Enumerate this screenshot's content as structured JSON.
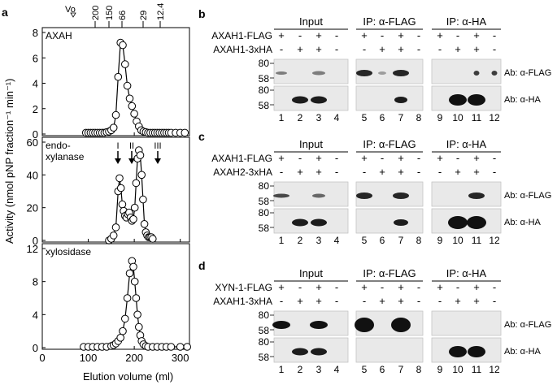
{
  "panel_a": {
    "letter": "a",
    "ylabel": "Activity (nmol pNP fraction⁻¹ min⁻¹)",
    "xlabel": "Elution volume (ml)",
    "marker_vo": "Vo",
    "markers": [
      "200",
      "150",
      "66",
      "29",
      "12.4"
    ],
    "peak_labels": [
      "I",
      "II",
      "III"
    ],
    "xticks": [
      "0",
      "100",
      "200",
      "300"
    ]
  },
  "chart_data": [
    {
      "type": "line",
      "title": "AXAH",
      "xlim": [
        0,
        320
      ],
      "ylim": [
        0,
        8
      ],
      "yticks": [
        0,
        2,
        4,
        6,
        8
      ],
      "x": [
        95,
        100,
        105,
        110,
        115,
        120,
        125,
        130,
        135,
        140,
        145,
        150,
        155,
        160,
        165,
        170,
        175,
        180,
        185,
        190,
        195,
        200,
        205,
        210,
        215,
        220,
        225,
        230,
        235,
        240,
        245,
        250,
        255,
        260,
        265,
        270,
        275,
        280,
        290,
        300,
        310
      ],
      "values": [
        0.1,
        0.1,
        0.1,
        0.1,
        0.1,
        0.1,
        0.1,
        0.1,
        0.1,
        0.15,
        0.2,
        0.3,
        0.5,
        1.5,
        4.5,
        7.2,
        7.0,
        5.5,
        3.8,
        2.8,
        2.2,
        1.6,
        1.0,
        0.6,
        0.3,
        0.2,
        0.15,
        0.1,
        0.1,
        0.1,
        0.1,
        0.1,
        0.1,
        0.1,
        0.1,
        0.1,
        0.1,
        0.1,
        0.1,
        0.1,
        0.1
      ]
    },
    {
      "type": "line",
      "title": "endo-\nxylanase",
      "xlim": [
        0,
        320
      ],
      "ylim": [
        0,
        60
      ],
      "yticks": [
        0,
        20,
        40,
        60
      ],
      "x": [
        145,
        150,
        155,
        160,
        165,
        168,
        171,
        174,
        177,
        180,
        183,
        186,
        189,
        192,
        195,
        198,
        201,
        204,
        207,
        210,
        213,
        216,
        219,
        222,
        225,
        228,
        231,
        234,
        237,
        240
      ],
      "values": [
        0,
        1,
        3,
        8,
        30,
        38,
        32,
        22,
        18,
        15,
        14,
        16,
        17,
        14,
        12,
        13,
        20,
        35,
        50,
        55,
        52,
        40,
        25,
        10,
        5,
        3,
        2,
        2,
        2,
        1
      ]
    },
    {
      "type": "line",
      "title": "xylosidase",
      "xlim": [
        0,
        320
      ],
      "ylim": [
        0,
        12
      ],
      "yticks": [
        0,
        4,
        8,
        12
      ],
      "x": [
        90,
        100,
        110,
        120,
        130,
        140,
        150,
        155,
        160,
        165,
        170,
        175,
        180,
        185,
        190,
        195,
        198,
        201,
        204,
        207,
        210,
        213,
        216,
        220,
        225,
        230,
        240,
        250,
        260,
        270,
        280,
        300,
        315
      ],
      "values": [
        0.1,
        0.1,
        0.1,
        0.1,
        0.1,
        0.1,
        0.2,
        0.3,
        0.5,
        0.8,
        1.2,
        2.0,
        3.5,
        6.0,
        9.0,
        10.5,
        9.8,
        8.0,
        6.0,
        4.0,
        2.5,
        1.5,
        0.8,
        0.4,
        0.2,
        0.1,
        0.1,
        0.1,
        0.1,
        0.1,
        0.1,
        0.1,
        0.1
      ]
    }
  ],
  "blots": [
    {
      "letter": "b",
      "groups": [
        "Input",
        "IP: α-FLAG",
        "IP: α-HA"
      ],
      "row1_label": "AXAH1-FLAG",
      "row2_label": "AXAH1-3xHA",
      "row1_signs": [
        "+",
        "-",
        "+",
        "-",
        "+",
        "-",
        "+",
        "-",
        "+",
        "-",
        "+",
        "-"
      ],
      "row2_signs": [
        "-",
        "+",
        "+",
        "-",
        "-",
        "+",
        "+",
        "-",
        "-",
        "+",
        "+",
        "-"
      ],
      "mw_top": [
        "80",
        "58"
      ],
      "mw_bottom": [
        "80",
        "58"
      ],
      "ab_top": "Ab: α-FLAG",
      "ab_bottom": "Ab: α-HA",
      "lanes": [
        "1",
        "2",
        "3",
        "4",
        "5",
        "6",
        "7",
        "8",
        "9",
        "10",
        "11",
        "12"
      ]
    },
    {
      "letter": "c",
      "groups": [
        "Input",
        "IP: α-FLAG",
        "IP: α-HA"
      ],
      "row1_label": "AXAH1-FLAG",
      "row2_label": "AXAH2-3xHA",
      "row1_signs": [
        "+",
        "-",
        "+",
        "-",
        "+",
        "-",
        "+",
        "-",
        "+",
        "-",
        "+",
        "-"
      ],
      "row2_signs": [
        "-",
        "+",
        "+",
        "-",
        "-",
        "+",
        "+",
        "-",
        "-",
        "+",
        "+",
        "-"
      ],
      "mw_top": [
        "80",
        "58"
      ],
      "mw_bottom": [
        "80",
        "58"
      ],
      "ab_top": "Ab: α-FLAG",
      "ab_bottom": "Ab: α-HA",
      "lanes": [
        "1",
        "2",
        "3",
        "4",
        "5",
        "6",
        "7",
        "8",
        "9",
        "10",
        "11",
        "12"
      ]
    },
    {
      "letter": "d",
      "groups": [
        "Input",
        "IP: α-FLAG",
        "IP: α-HA"
      ],
      "row1_label": "XYN-1-FLAG",
      "row2_label": "AXAH1-3xHA",
      "row1_signs": [
        "+",
        "-",
        "+",
        "-",
        "+",
        "-",
        "+",
        "-",
        "+",
        "-",
        "+",
        "-"
      ],
      "row2_signs": [
        "-",
        "+",
        "+",
        "-",
        "-",
        "+",
        "+",
        "-",
        "-",
        "+",
        "+",
        "-"
      ],
      "mw_top": [
        "80",
        "58"
      ],
      "mw_bottom": [
        "80",
        "58"
      ],
      "ab_top": "Ab: α-FLAG",
      "ab_bottom": "Ab: α-HA",
      "lanes": [
        "1",
        "2",
        "3",
        "4",
        "5",
        "6",
        "7",
        "8",
        "9",
        "10",
        "11",
        "12"
      ]
    }
  ]
}
